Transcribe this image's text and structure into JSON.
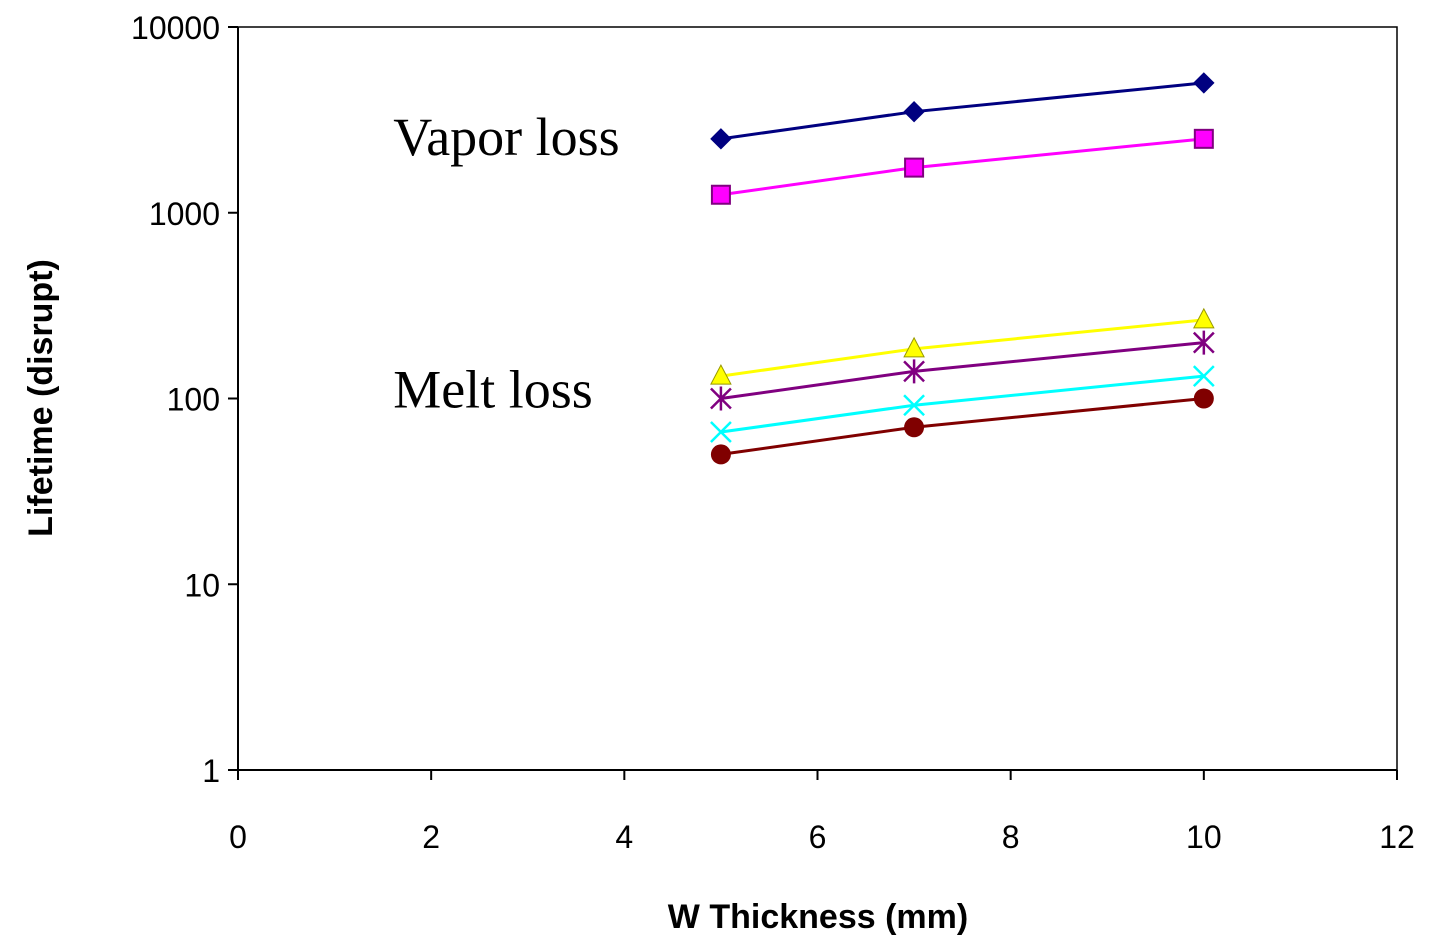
{
  "chart_data": {
    "type": "line",
    "title": "",
    "xlabel": "W Thickness (mm)",
    "ylabel": "Lifetime (disrupt)",
    "xlim": [
      0,
      12
    ],
    "ylim": [
      1,
      10000
    ],
    "yscale": "log",
    "grid": false,
    "legend": "none",
    "x_ticks": [
      "0",
      "2",
      "4",
      "6",
      "8",
      "10",
      "12"
    ],
    "y_ticks": [
      "1",
      "10",
      "100",
      "1000",
      "10000"
    ],
    "annotations": [
      {
        "text": "Vapor loss",
        "x": 1.4,
        "y": 1600
      },
      {
        "text": "Melt loss",
        "x": 1.4,
        "y": 70
      }
    ],
    "series": [
      {
        "marker": "diamond",
        "color": "#000080",
        "x": [
          5,
          7,
          10
        ],
        "y": [
          2500,
          3500,
          5000
        ]
      },
      {
        "marker": "square",
        "color": "#FF00FF",
        "x": [
          5,
          7,
          10
        ],
        "y": [
          1250,
          1750,
          2500
        ]
      },
      {
        "marker": "triangle",
        "color": "#FFFF00",
        "x": [
          5,
          7,
          10
        ],
        "y": [
          132,
          185,
          265
        ]
      },
      {
        "marker": "asterisk",
        "color": "#800080",
        "x": [
          5,
          7,
          10
        ],
        "y": [
          100,
          140,
          200
        ]
      },
      {
        "marker": "x",
        "color": "#00FFFF",
        "x": [
          5,
          7,
          10
        ],
        "y": [
          66,
          92,
          132
        ]
      },
      {
        "marker": "circle",
        "color": "#800000",
        "x": [
          5,
          7,
          10
        ],
        "y": [
          50,
          70,
          100
        ]
      }
    ]
  }
}
